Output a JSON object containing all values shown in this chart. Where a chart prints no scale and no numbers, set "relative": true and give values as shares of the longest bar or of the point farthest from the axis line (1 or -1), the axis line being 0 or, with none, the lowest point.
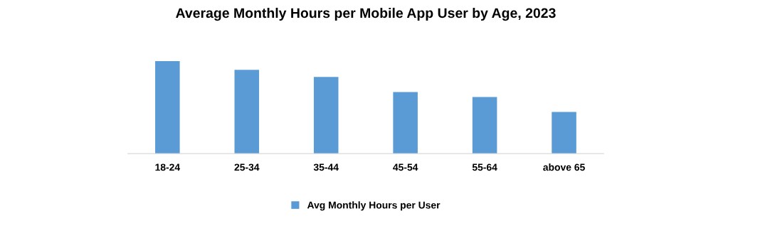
{
  "chart_data": {
    "type": "bar",
    "title": "Average Monthly Hours per Mobile App User by Age, 2023",
    "categories": [
      "18-24",
      "25-34",
      "35-44",
      "45-54",
      "55-64",
      "above 65"
    ],
    "relative": true,
    "grid": false,
    "legend": "bottom",
    "series": [
      {
        "name": "Avg Monthly Hours per User",
        "color": "#5b9bd5",
        "values": [
          1,
          0.907,
          0.829,
          0.667,
          0.612,
          0.45
        ]
      }
    ]
  }
}
